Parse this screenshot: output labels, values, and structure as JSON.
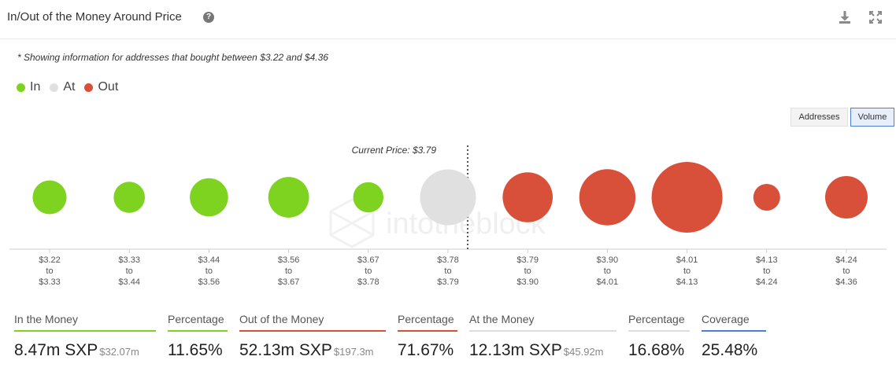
{
  "header": {
    "title": "In/Out of the Money Around Price",
    "help_glyph": "?"
  },
  "note": "* Showing information for addresses that bought between $3.22 and $4.36",
  "legend": [
    {
      "label": "In",
      "color": "#7ed321"
    },
    {
      "label": "At",
      "color": "#e0e0e0"
    },
    {
      "label": "Out",
      "color": "#d9503a"
    }
  ],
  "toggles": {
    "addresses": "Addresses",
    "volume": "Volume",
    "active": "volume"
  },
  "watermark": "intotheblock",
  "chart_data": {
    "type": "scatter",
    "current_price_label": "Current Price: $3.79",
    "current_price_after_index": 5,
    "categories": [
      {
        "from": "$3.22",
        "to": "$3.33",
        "status": "in",
        "size": 0.12
      },
      {
        "from": "$3.33",
        "to": "$3.44",
        "status": "in",
        "size": 0.09
      },
      {
        "from": "$3.44",
        "to": "$3.56",
        "status": "in",
        "size": 0.18
      },
      {
        "from": "$3.56",
        "to": "$3.67",
        "status": "in",
        "size": 0.22
      },
      {
        "from": "$3.67",
        "to": "$3.78",
        "status": "in",
        "size": 0.08
      },
      {
        "from": "$3.78",
        "to": "$3.79",
        "status": "at",
        "size": 0.54
      },
      {
        "from": "$3.79",
        "to": "$3.90",
        "status": "out",
        "size": 0.4
      },
      {
        "from": "$3.90",
        "to": "$4.01",
        "status": "out",
        "size": 0.55
      },
      {
        "from": "$4.01",
        "to": "$4.13",
        "status": "out",
        "size": 1.0
      },
      {
        "from": "$4.13",
        "to": "$4.24",
        "status": "out",
        "size": 0.05
      },
      {
        "from": "$4.24",
        "to": "$4.36",
        "status": "out",
        "size": 0.25
      }
    ],
    "to_word": "to",
    "colors": {
      "in": "#7ed321",
      "at": "#e0e0e0",
      "out": "#d9503a"
    }
  },
  "stats": {
    "in_money": {
      "label": "In the Money",
      "value": "8.47m SXP",
      "sub": "$32.07m",
      "color": "#7ed321"
    },
    "in_pct": {
      "label": "Percentage",
      "value": "11.65%",
      "color": "#7ed321"
    },
    "out_money": {
      "label": "Out of the Money",
      "value": "52.13m SXP",
      "sub": "$197.3m",
      "color": "#d9503a"
    },
    "out_pct": {
      "label": "Percentage",
      "value": "71.67%",
      "color": "#d9503a"
    },
    "at_money": {
      "label": "At the Money",
      "value": "12.13m SXP",
      "sub": "$45.92m",
      "color": "#dddddd"
    },
    "at_pct": {
      "label": "Percentage",
      "value": "16.68%",
      "color": "#dddddd"
    },
    "coverage": {
      "label": "Coverage",
      "value": "25.48%",
      "color": "#4a7fd6"
    }
  }
}
